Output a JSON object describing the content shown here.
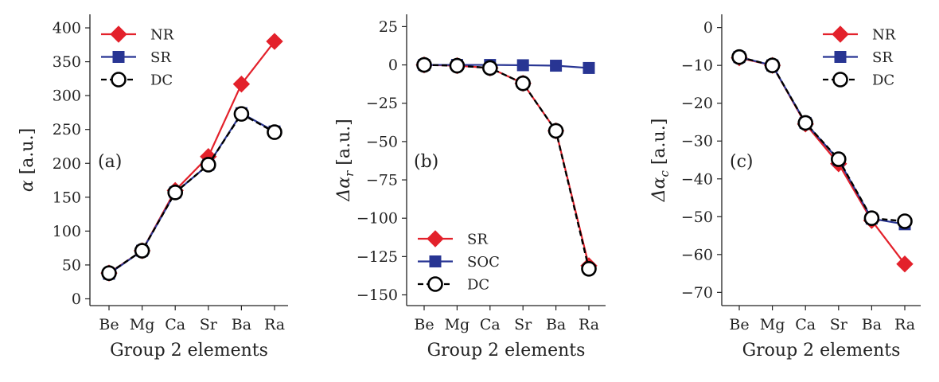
{
  "colors": {
    "red": "#e3212b",
    "blue": "#283593",
    "black": "#000000"
  },
  "chart_data": [
    {
      "type": "line",
      "panel": "(a)",
      "xlabel": "Group 2 elements",
      "ylabel": {
        "sym": "α",
        "sub": "",
        "unit": " [a.u.]"
      },
      "categories": [
        "Be",
        "Mg",
        "Ca",
        "Sr",
        "Ba",
        "Ra"
      ],
      "ylim": [
        -10,
        420
      ],
      "yticks": [
        0,
        50,
        100,
        150,
        200,
        250,
        300,
        350,
        400
      ],
      "ytick_labels": [
        "0",
        "50",
        "100",
        "150",
        "200",
        "250",
        "300",
        "350",
        "400"
      ],
      "legend_position": "top-left",
      "series": [
        {
          "name": "NR",
          "marker": "diamond",
          "color": "red",
          "values": [
            38,
            71,
            160,
            210,
            317,
            380
          ]
        },
        {
          "name": "SR",
          "marker": "square",
          "color": "blue",
          "values": [
            37,
            71,
            157,
            198,
            274,
            247
          ]
        },
        {
          "name": "DC",
          "marker": "circle",
          "color": "black",
          "dashed": true,
          "values": [
            38,
            71,
            157,
            198,
            273,
            246
          ]
        }
      ]
    },
    {
      "type": "line",
      "panel": "(b)",
      "xlabel": "Group 2 elements",
      "ylabel": {
        "sym": "Δα",
        "sub": "r",
        "unit": " [a.u.]"
      },
      "categories": [
        "Be",
        "Mg",
        "Ca",
        "Sr",
        "Ba",
        "Ra"
      ],
      "ylim": [
        -157,
        33
      ],
      "yticks": [
        25,
        0,
        -25,
        -50,
        -75,
        -100,
        -125,
        -150
      ],
      "ytick_labels": [
        "25",
        "0",
        "−25",
        "−50",
        "−75",
        "−100",
        "−125",
        "−150"
      ],
      "legend_position": "bottom-left",
      "series": [
        {
          "name": "SR",
          "marker": "diamond",
          "color": "red",
          "values": [
            0,
            -0.5,
            -2,
            -12,
            -43,
            -131
          ]
        },
        {
          "name": "SOC",
          "marker": "square",
          "color": "blue",
          "values": [
            0,
            0,
            0,
            -0.2,
            -0.5,
            -2
          ]
        },
        {
          "name": "DC",
          "marker": "circle",
          "color": "black",
          "dashed": true,
          "values": [
            0,
            -0.5,
            -2,
            -12,
            -43,
            -133
          ]
        }
      ]
    },
    {
      "type": "line",
      "panel": "(c)",
      "xlabel": "Group 2 elements",
      "ylabel": {
        "sym": "Δα",
        "sub": "c",
        "unit": " [a.u.]"
      },
      "categories": [
        "Be",
        "Mg",
        "Ca",
        "Sr",
        "Ba",
        "Ra"
      ],
      "ylim": [
        -73.5,
        3.5
      ],
      "yticks": [
        0,
        -10,
        -20,
        -30,
        -40,
        -50,
        -60,
        -70
      ],
      "ytick_labels": [
        "0",
        "−10",
        "−20",
        "−30",
        "−40",
        "−50",
        "−60",
        "−70"
      ],
      "legend_position": "top-right",
      "series": [
        {
          "name": "NR",
          "marker": "diamond",
          "color": "red",
          "values": [
            -8,
            -10,
            -25.5,
            -36,
            -51,
            -62.5
          ]
        },
        {
          "name": "SR",
          "marker": "square",
          "color": "blue",
          "values": [
            -7.8,
            -10,
            -25.2,
            -35,
            -50.5,
            -52
          ]
        },
        {
          "name": "DC",
          "marker": "circle",
          "color": "black",
          "dashed": true,
          "values": [
            -7.8,
            -10,
            -25.2,
            -34.8,
            -50.4,
            -51.2
          ]
        }
      ]
    }
  ]
}
